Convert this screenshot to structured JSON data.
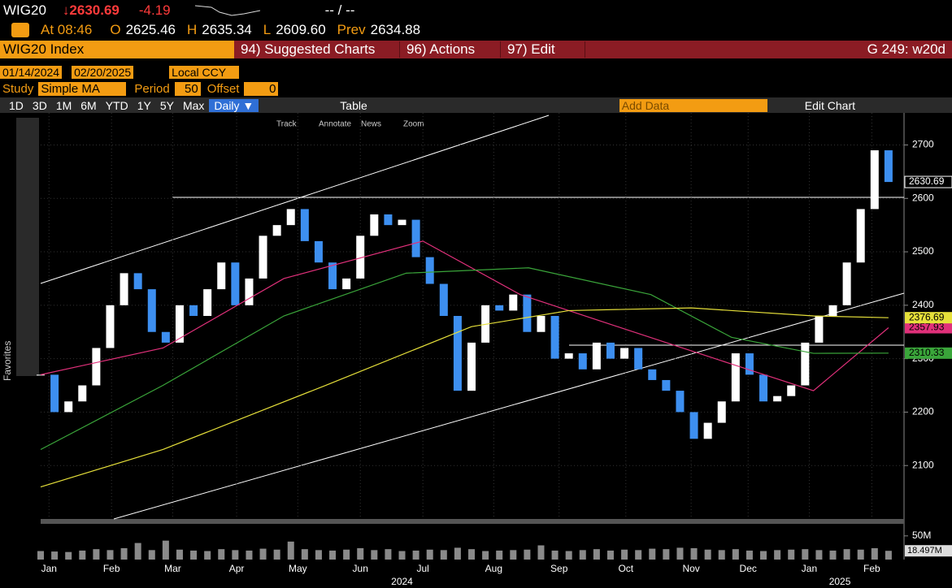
{
  "header": {
    "ticker": "WIG20",
    "last": "2630.69",
    "change": "-4.19",
    "bidask": "-- / --",
    "time": "At 08:46",
    "open_label": "O",
    "open": "2625.46",
    "high_label": "H",
    "high": "2635.34",
    "low_label": "L",
    "low": "2609.60",
    "prev_label": "Prev",
    "prev": "2634.88"
  },
  "toolbar": {
    "security": "WIG20 Index",
    "menu": [
      "94) Suggested Charts",
      "96) Actions",
      "97) Edit"
    ],
    "page": "G 249: w20d",
    "start": "01/14/2024",
    "end": "02/20/2025",
    "currency": "Local CCY",
    "study_label": "Study",
    "study": "Simple MA",
    "period_label": "Period",
    "period": "50",
    "offset_label": "Offset",
    "offset": "0",
    "ranges": [
      "1D",
      "3D",
      "1M",
      "6M",
      "YTD",
      "1Y",
      "5Y",
      "Max"
    ],
    "frequency": "Daily ▼",
    "table": "Table",
    "add_data": "Add Data",
    "edit_chart": "Edit Chart",
    "modes": [
      "Track",
      "Annotate",
      "News",
      "Zoom"
    ],
    "favorites": "Favorites"
  },
  "chart_data": {
    "type": "candlestick",
    "xlim": [
      0,
      62
    ],
    "xticks": [
      {
        "value": 0.6,
        "label": "Jan"
      },
      {
        "value": 5.1,
        "label": "Feb"
      },
      {
        "value": 9.5,
        "label": "Mar"
      },
      {
        "value": 14.1,
        "label": "Apr"
      },
      {
        "value": 18.5,
        "label": "May"
      },
      {
        "value": 23,
        "label": "Jun"
      },
      {
        "value": 27.5,
        "label": "Jul"
      },
      {
        "value": 32.6,
        "label": "Aug"
      },
      {
        "value": 37.3,
        "label": "Sep"
      },
      {
        "value": 42.1,
        "label": "Oct"
      },
      {
        "value": 46.8,
        "label": "Nov"
      },
      {
        "value": 50.9,
        "label": "Dec"
      },
      {
        "value": 55.3,
        "label": "Jan"
      },
      {
        "value": 59.8,
        "label": "Feb"
      }
    ],
    "years": [
      {
        "value": 26,
        "label": "2024"
      },
      {
        "value": 57.5,
        "label": "2025"
      }
    ],
    "ylim": [
      2000,
      2760
    ],
    "yticks": [
      2100,
      2200,
      2300,
      2400,
      2500,
      2600,
      2700
    ],
    "up_color": "#ffffff",
    "down_color": "#3d8ff0",
    "close": [
      2270,
      2200,
      2220,
      2250,
      2320,
      2400,
      2460,
      2430,
      2350,
      2330,
      2400,
      2380,
      2430,
      2480,
      2400,
      2450,
      2530,
      2550,
      2580,
      2520,
      2480,
      2430,
      2450,
      2530,
      2570,
      2550,
      2560,
      2490,
      2440,
      2380,
      2240,
      2330,
      2400,
      2390,
      2420,
      2350,
      2380,
      2300,
      2310,
      2280,
      2330,
      2300,
      2320,
      2280,
      2260,
      2240,
      2200,
      2150,
      2180,
      2220,
      2310,
      2270,
      2220,
      2230,
      2250,
      2330,
      2380,
      2400,
      2480,
      2580,
      2690,
      2630.69
    ],
    "series": [
      {
        "name": "SMA 50",
        "color": "#e0307a",
        "x": [
          0,
          8.8,
          17.5,
          27.5,
          34.5,
          41.5,
          49.7,
          55.6,
          61
        ],
        "values": [
          2270,
          2320,
          2450,
          2520,
          2420,
          2360,
          2290,
          2240,
          2357.93
        ]
      },
      {
        "name": "SMA 100",
        "color": "#3aa53a",
        "x": [
          0,
          8.8,
          17.5,
          26.3,
          35.1,
          43.9,
          49.7,
          55.6,
          61
        ],
        "values": [
          2130,
          2250,
          2380,
          2460,
          2470,
          2420,
          2340,
          2310,
          2310.33
        ]
      },
      {
        "name": "SMA 200",
        "color": "#e6e03a",
        "x": [
          0,
          8.8,
          20.5,
          31,
          38,
          46.8,
          55.6,
          61
        ],
        "values": [
          2060,
          2130,
          2250,
          2360,
          2390,
          2395,
          2380,
          2376.69
        ]
      }
    ],
    "volume": {
      "ylim": [
        0,
        72
      ],
      "yticks": [
        {
          "value": 50,
          "label": "50M"
        }
      ],
      "color": "#8a8a8a",
      "values": [
        18,
        17,
        16,
        19,
        22,
        20,
        24,
        35,
        20,
        40,
        21,
        19,
        18,
        22,
        20,
        19,
        23,
        21,
        38,
        22,
        20,
        19,
        21,
        24,
        20,
        22,
        18,
        19,
        21,
        20,
        25,
        22,
        18,
        19,
        20,
        21,
        30,
        19,
        18,
        20,
        22,
        19,
        21,
        20,
        23,
        22,
        25,
        24,
        21,
        20,
        22,
        19,
        18,
        20,
        21,
        22,
        20,
        19,
        22,
        21,
        24,
        18.497
      ],
      "value_labels": [
        null,
        null,
        null,
        null,
        null,
        null,
        null,
        null,
        null,
        null,
        null,
        null,
        null,
        null,
        null,
        null,
        null,
        null,
        null,
        null,
        null,
        null,
        null,
        null,
        null,
        null,
        null,
        null,
        null,
        null,
        null,
        null,
        null,
        null,
        null,
        null,
        null,
        null,
        null,
        null,
        null,
        null,
        null,
        null,
        null,
        null,
        null,
        null,
        null,
        null,
        null,
        null,
        null,
        null,
        null,
        null,
        null,
        null,
        null,
        null,
        null,
        "18.497M"
      ]
    }
  }
}
